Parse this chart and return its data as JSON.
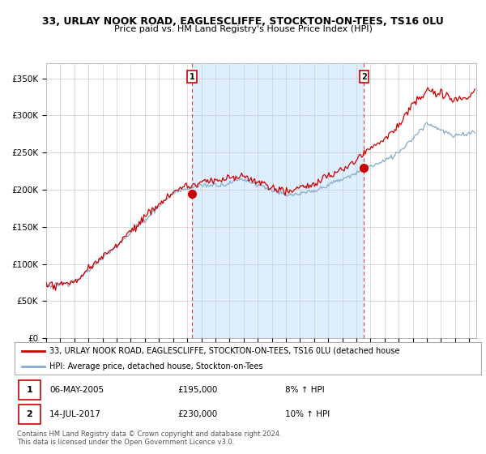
{
  "title1": "33, URLAY NOOK ROAD, EAGLESCLIFFE, STOCKTON-ON-TEES, TS16 0LU",
  "title2": "Price paid vs. HM Land Registry's House Price Index (HPI)",
  "ylabel_ticks": [
    "£0",
    "£50K",
    "£100K",
    "£150K",
    "£200K",
    "£250K",
    "£300K",
    "£350K"
  ],
  "ytick_values": [
    0,
    50000,
    100000,
    150000,
    200000,
    250000,
    300000,
    350000
  ],
  "ylim": [
    0,
    370000
  ],
  "xlim_start": 1995.0,
  "xlim_end": 2025.5,
  "transaction1_date": 2005.35,
  "transaction1_price": 195000,
  "transaction2_date": 2017.54,
  "transaction2_price": 230000,
  "red_color": "#cc0000",
  "blue_color": "#88aacc",
  "shade_color": "#ddeeff",
  "vline_color": "#dd4444",
  "legend_label1": "33, URLAY NOOK ROAD, EAGLESCLIFFE, STOCKTON-ON-TEES, TS16 0LU (detached house",
  "legend_label2": "HPI: Average price, detached house, Stockton-on-Tees",
  "table_row1": [
    "1",
    "06-MAY-2005",
    "£195,000",
    "8% ↑ HPI"
  ],
  "table_row2": [
    "2",
    "14-JUL-2017",
    "£230,000",
    "10% ↑ HPI"
  ],
  "footer1": "Contains HM Land Registry data © Crown copyright and database right 2024.",
  "footer2": "This data is licensed under the Open Government Licence v3.0.",
  "background_color": "#ffffff",
  "grid_color": "#cccccc"
}
